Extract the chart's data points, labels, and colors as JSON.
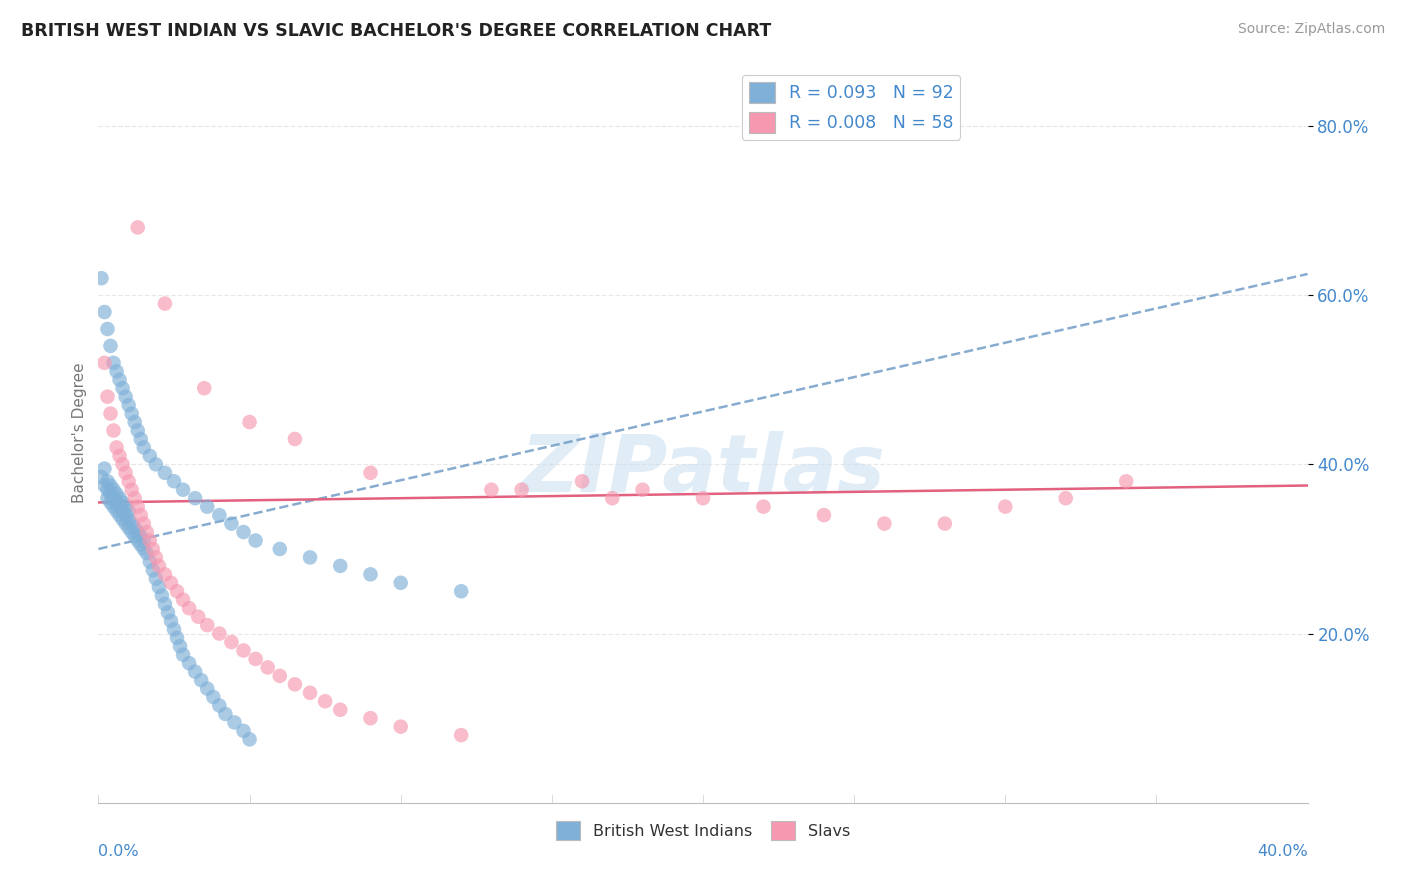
{
  "title": "BRITISH WEST INDIAN VS SLAVIC BACHELOR'S DEGREE CORRELATION CHART",
  "source": "Source: ZipAtlas.com",
  "ylabel": "Bachelor's Degree",
  "yticks_labels": [
    "20.0%",
    "40.0%",
    "60.0%",
    "80.0%"
  ],
  "ytick_values": [
    0.2,
    0.4,
    0.6,
    0.8
  ],
  "xlim": [
    0.0,
    0.4
  ],
  "ylim": [
    0.0,
    0.875
  ],
  "legend_entries": [
    {
      "label": "R = 0.093   N = 92",
      "color": "#a8c8e8"
    },
    {
      "label": "R = 0.008   N = 58",
      "color": "#f5b8cb"
    }
  ],
  "legend_bottom": [
    {
      "label": "British West Indians",
      "color": "#a8c8e8"
    },
    {
      "label": "Slavs",
      "color": "#f5b8cb"
    }
  ],
  "blue_scatter_x": [
    0.001,
    0.002,
    0.002,
    0.003,
    0.003,
    0.003,
    0.004,
    0.004,
    0.004,
    0.005,
    0.005,
    0.005,
    0.006,
    0.006,
    0.006,
    0.007,
    0.007,
    0.007,
    0.008,
    0.008,
    0.008,
    0.009,
    0.009,
    0.009,
    0.01,
    0.01,
    0.01,
    0.011,
    0.011,
    0.012,
    0.012,
    0.013,
    0.013,
    0.014,
    0.014,
    0.015,
    0.015,
    0.016,
    0.017,
    0.018,
    0.019,
    0.02,
    0.021,
    0.022,
    0.023,
    0.024,
    0.025,
    0.026,
    0.027,
    0.028,
    0.03,
    0.032,
    0.034,
    0.036,
    0.038,
    0.04,
    0.042,
    0.045,
    0.048,
    0.05,
    0.001,
    0.002,
    0.003,
    0.004,
    0.005,
    0.006,
    0.007,
    0.008,
    0.009,
    0.01,
    0.011,
    0.012,
    0.013,
    0.014,
    0.015,
    0.017,
    0.019,
    0.022,
    0.025,
    0.028,
    0.032,
    0.036,
    0.04,
    0.044,
    0.048,
    0.052,
    0.06,
    0.07,
    0.08,
    0.09,
    0.1,
    0.12
  ],
  "blue_scatter_y": [
    0.385,
    0.375,
    0.395,
    0.36,
    0.37,
    0.38,
    0.355,
    0.365,
    0.375,
    0.35,
    0.36,
    0.37,
    0.345,
    0.355,
    0.365,
    0.34,
    0.35,
    0.36,
    0.335,
    0.345,
    0.355,
    0.33,
    0.34,
    0.35,
    0.325,
    0.335,
    0.345,
    0.32,
    0.33,
    0.315,
    0.325,
    0.31,
    0.32,
    0.305,
    0.315,
    0.3,
    0.31,
    0.295,
    0.285,
    0.275,
    0.265,
    0.255,
    0.245,
    0.235,
    0.225,
    0.215,
    0.205,
    0.195,
    0.185,
    0.175,
    0.165,
    0.155,
    0.145,
    0.135,
    0.125,
    0.115,
    0.105,
    0.095,
    0.085,
    0.075,
    0.62,
    0.58,
    0.56,
    0.54,
    0.52,
    0.51,
    0.5,
    0.49,
    0.48,
    0.47,
    0.46,
    0.45,
    0.44,
    0.43,
    0.42,
    0.41,
    0.4,
    0.39,
    0.38,
    0.37,
    0.36,
    0.35,
    0.34,
    0.33,
    0.32,
    0.31,
    0.3,
    0.29,
    0.28,
    0.27,
    0.26,
    0.25
  ],
  "pink_scatter_x": [
    0.002,
    0.003,
    0.004,
    0.005,
    0.006,
    0.007,
    0.008,
    0.009,
    0.01,
    0.011,
    0.012,
    0.013,
    0.014,
    0.015,
    0.016,
    0.017,
    0.018,
    0.019,
    0.02,
    0.022,
    0.024,
    0.026,
    0.028,
    0.03,
    0.033,
    0.036,
    0.04,
    0.044,
    0.048,
    0.052,
    0.056,
    0.06,
    0.065,
    0.07,
    0.075,
    0.08,
    0.09,
    0.1,
    0.12,
    0.14,
    0.16,
    0.18,
    0.2,
    0.22,
    0.24,
    0.26,
    0.28,
    0.3,
    0.32,
    0.34,
    0.013,
    0.022,
    0.035,
    0.05,
    0.065,
    0.09,
    0.13,
    0.17
  ],
  "pink_scatter_y": [
    0.52,
    0.48,
    0.46,
    0.44,
    0.42,
    0.41,
    0.4,
    0.39,
    0.38,
    0.37,
    0.36,
    0.35,
    0.34,
    0.33,
    0.32,
    0.31,
    0.3,
    0.29,
    0.28,
    0.27,
    0.26,
    0.25,
    0.24,
    0.23,
    0.22,
    0.21,
    0.2,
    0.19,
    0.18,
    0.17,
    0.16,
    0.15,
    0.14,
    0.13,
    0.12,
    0.11,
    0.1,
    0.09,
    0.08,
    0.37,
    0.38,
    0.37,
    0.36,
    0.35,
    0.34,
    0.33,
    0.33,
    0.35,
    0.36,
    0.38,
    0.68,
    0.59,
    0.49,
    0.45,
    0.43,
    0.39,
    0.37,
    0.36
  ],
  "blue_trend_x": [
    0.0,
    0.4
  ],
  "blue_trend_y": [
    0.3,
    0.625
  ],
  "pink_trend_x": [
    0.0,
    0.4
  ],
  "pink_trend_y": [
    0.355,
    0.375
  ],
  "watermark": "ZIPatlas",
  "background_color": "#ffffff",
  "grid_color": "#e8e8e8",
  "blue_color": "#7fb0d8",
  "pink_color": "#f598b0",
  "blue_trend_color": "#6090c0",
  "pink_trend_color": "#e05878",
  "title_color": "#222222",
  "tick_label_color": "#4488cc",
  "source_color": "#999999"
}
